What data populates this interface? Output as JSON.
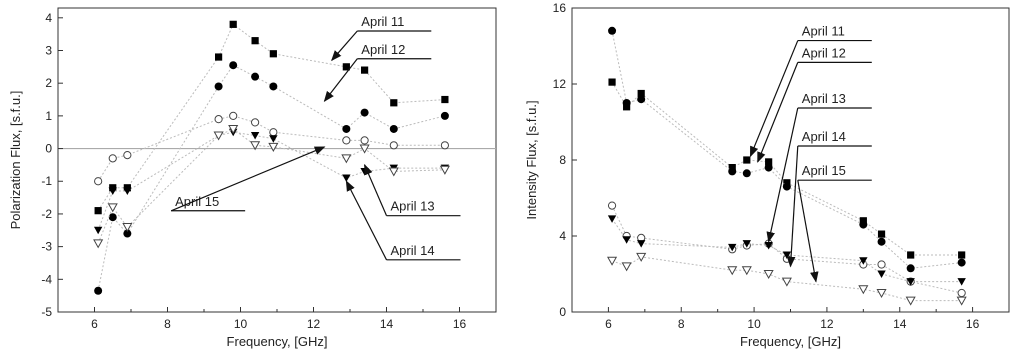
{
  "chart_data": [
    {
      "type": "scatter",
      "xlabel": "Frequency, [GHz]",
      "ylabel": "Polarization Flux, [s.f.u.]",
      "xlim": [
        5,
        17
      ],
      "ylim": [
        -5,
        4.3
      ],
      "xticks": [
        6,
        8,
        10,
        12,
        14,
        16
      ],
      "yticks": [
        -5,
        -4,
        -3,
        -2,
        -1,
        0,
        1,
        2,
        3,
        4
      ],
      "zero_line": true,
      "series": [
        {
          "name": "April 11",
          "marker": "square",
          "x": [
            6.1,
            6.5,
            6.9,
            9.4,
            9.8,
            10.4,
            10.9,
            12.9,
            13.4,
            14.2,
            15.6
          ],
          "y": [
            -1.9,
            -1.2,
            -1.2,
            2.8,
            3.8,
            3.3,
            2.9,
            2.5,
            2.4,
            1.4,
            1.5
          ]
        },
        {
          "name": "April 12",
          "marker": "circle-filled",
          "x": [
            6.1,
            6.5,
            6.9,
            9.4,
            9.8,
            10.4,
            10.9,
            12.9,
            13.4,
            14.2,
            15.6
          ],
          "y": [
            -4.35,
            -2.1,
            -2.6,
            1.9,
            2.55,
            2.2,
            1.9,
            0.6,
            1.1,
            0.6,
            1.0
          ]
        },
        {
          "name": "April 13",
          "marker": "circle-open",
          "x": [
            6.1,
            6.5,
            6.9,
            9.4,
            9.8,
            10.4,
            10.9,
            12.9,
            13.4,
            14.2,
            15.6
          ],
          "y": [
            -1.0,
            -0.3,
            -0.2,
            0.9,
            1.0,
            0.8,
            0.5,
            0.25,
            0.25,
            0.1,
            0.1
          ]
        },
        {
          "name": "April 14",
          "marker": "triangle-filled",
          "x": [
            6.1,
            6.5,
            6.9,
            9.4,
            9.8,
            10.4,
            10.9,
            12.9,
            13.4,
            14.2,
            15.6
          ],
          "y": [
            -2.5,
            -1.3,
            -1.3,
            0.4,
            0.5,
            0.4,
            0.3,
            -0.9,
            -0.7,
            -0.6,
            -0.6
          ]
        },
        {
          "name": "April 15",
          "marker": "triangle-open",
          "x": [
            6.1,
            6.5,
            6.9,
            9.4,
            9.8,
            10.4,
            10.9,
            12.9,
            13.4,
            14.2,
            15.6
          ],
          "y": [
            -2.9,
            -1.8,
            -2.4,
            0.4,
            0.6,
            0.1,
            0.05,
            -0.3,
            0.0,
            -0.7,
            -0.65
          ]
        }
      ],
      "annotations": [
        {
          "text": "April 11",
          "tx": 13.2,
          "ty": 3.75,
          "ax": 12.5,
          "ay": 2.7,
          "side": "right"
        },
        {
          "text": "April 12",
          "tx": 13.2,
          "ty": 2.9,
          "ax": 12.3,
          "ay": 1.45,
          "side": "right"
        },
        {
          "text": "April 15",
          "tx": 8.1,
          "ty": -1.75,
          "ax": 12.3,
          "ay": 0.05,
          "side": "left"
        },
        {
          "text": "April 13",
          "tx": 14.0,
          "ty": -1.9,
          "ax": 13.4,
          "ay": -0.5,
          "side": "left"
        },
        {
          "text": "April 14",
          "tx": 14.0,
          "ty": -3.25,
          "ax": 12.9,
          "ay": -1.0,
          "side": "left"
        }
      ]
    },
    {
      "type": "scatter",
      "xlabel": "Frequency, [GHz]",
      "ylabel": "Intensity Flux, [s.f.u.]",
      "xlim": [
        5,
        17
      ],
      "ylim": [
        0,
        16
      ],
      "xticks": [
        6,
        8,
        10,
        12,
        14,
        16
      ],
      "yticks": [
        0,
        4,
        8,
        12,
        16
      ],
      "zero_line": false,
      "series": [
        {
          "name": "April 11",
          "marker": "square",
          "x": [
            6.1,
            6.5,
            6.9,
            9.4,
            9.8,
            10.4,
            10.9,
            13.0,
            13.5,
            14.3,
            15.7
          ],
          "y": [
            12.1,
            10.8,
            11.5,
            7.6,
            8.0,
            7.9,
            6.8,
            4.8,
            4.1,
            3.0,
            3.0
          ]
        },
        {
          "name": "April 12",
          "marker": "circle-filled",
          "x": [
            6.1,
            6.5,
            6.9,
            9.4,
            9.8,
            10.4,
            10.9,
            13.0,
            13.5,
            14.3,
            15.7
          ],
          "y": [
            14.8,
            11.0,
            11.2,
            7.4,
            7.3,
            7.6,
            6.6,
            4.6,
            3.7,
            2.3,
            2.6
          ]
        },
        {
          "name": "April 13",
          "marker": "circle-open",
          "x": [
            6.1,
            6.5,
            6.9,
            9.4,
            9.8,
            10.4,
            10.9,
            13.0,
            13.5,
            14.3,
            15.7
          ],
          "y": [
            5.6,
            4.0,
            3.9,
            3.3,
            3.5,
            3.6,
            2.8,
            2.5,
            2.5,
            1.6,
            1.0
          ]
        },
        {
          "name": "April 14",
          "marker": "triangle-filled",
          "x": [
            6.1,
            6.5,
            6.9,
            9.4,
            9.8,
            10.4,
            10.9,
            13.0,
            13.5,
            14.3,
            15.7
          ],
          "y": [
            4.9,
            3.8,
            3.6,
            3.4,
            3.6,
            3.5,
            3.0,
            2.7,
            2.0,
            1.6,
            1.6
          ]
        },
        {
          "name": "April 15",
          "marker": "triangle-open",
          "x": [
            6.1,
            6.5,
            6.9,
            9.4,
            9.8,
            10.4,
            10.9,
            13.0,
            13.5,
            14.3,
            15.7
          ],
          "y": [
            2.7,
            2.4,
            2.9,
            2.2,
            2.2,
            2.0,
            1.6,
            1.2,
            1.0,
            0.6,
            0.6
          ]
        }
      ],
      "annotations": [
        {
          "text": "April 11",
          "tx": 11.2,
          "ty": 14.55,
          "ax": 9.9,
          "ay": 8.2,
          "side": "right"
        },
        {
          "text": "April 12",
          "tx": 11.2,
          "ty": 13.4,
          "ax": 10.1,
          "ay": 7.9,
          "side": "right"
        },
        {
          "text": "April 13",
          "tx": 11.2,
          "ty": 11.0,
          "ax": 10.4,
          "ay": 3.7,
          "side": "right"
        },
        {
          "text": "April 14",
          "tx": 11.2,
          "ty": 9.0,
          "ax": 11.0,
          "ay": 2.4,
          "side": "right"
        },
        {
          "text": "April 15",
          "tx": 11.2,
          "ty": 7.2,
          "ax": 11.7,
          "ay": 1.6,
          "side": "right"
        }
      ]
    }
  ]
}
